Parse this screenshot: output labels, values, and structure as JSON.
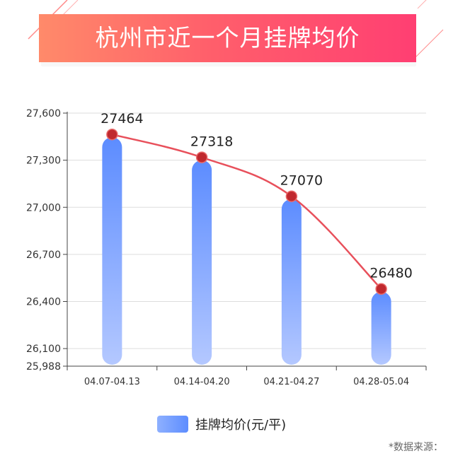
{
  "title": "杭州市近一个月挂牌均价",
  "legend": {
    "label": "挂牌均价(元/平)"
  },
  "source_note": "*数据来源：",
  "colors": {
    "bar_top": "#5c8cff",
    "bar_bottom": "#b4c8ff",
    "line": "#e8505b",
    "marker": "#c0282e",
    "banner_start": "#ff8a6a",
    "banner_end": "#ff3f72",
    "grid": "#dddddd"
  },
  "chart_data": {
    "type": "bar",
    "categories": [
      "04.07-04.13",
      "04.14-04.20",
      "04.21-04.27",
      "04.28-05.04"
    ],
    "series": [
      {
        "name": "挂牌均价(元/平)",
        "values": [
          27464,
          27318,
          27070,
          26480
        ]
      }
    ],
    "data_labels": [
      "27464",
      "27318",
      "27070",
      "26480"
    ],
    "overlay_line": true,
    "y_ticks": [
      25988,
      26100,
      26400,
      26700,
      27000,
      27300,
      27600
    ],
    "y_tick_labels": [
      "25,988",
      "26,100",
      "26,400",
      "26,700",
      "27,000",
      "27,300",
      "27,600"
    ],
    "ylim": [
      25988,
      27600
    ],
    "grid": true,
    "legend_position": "bottom-center"
  }
}
